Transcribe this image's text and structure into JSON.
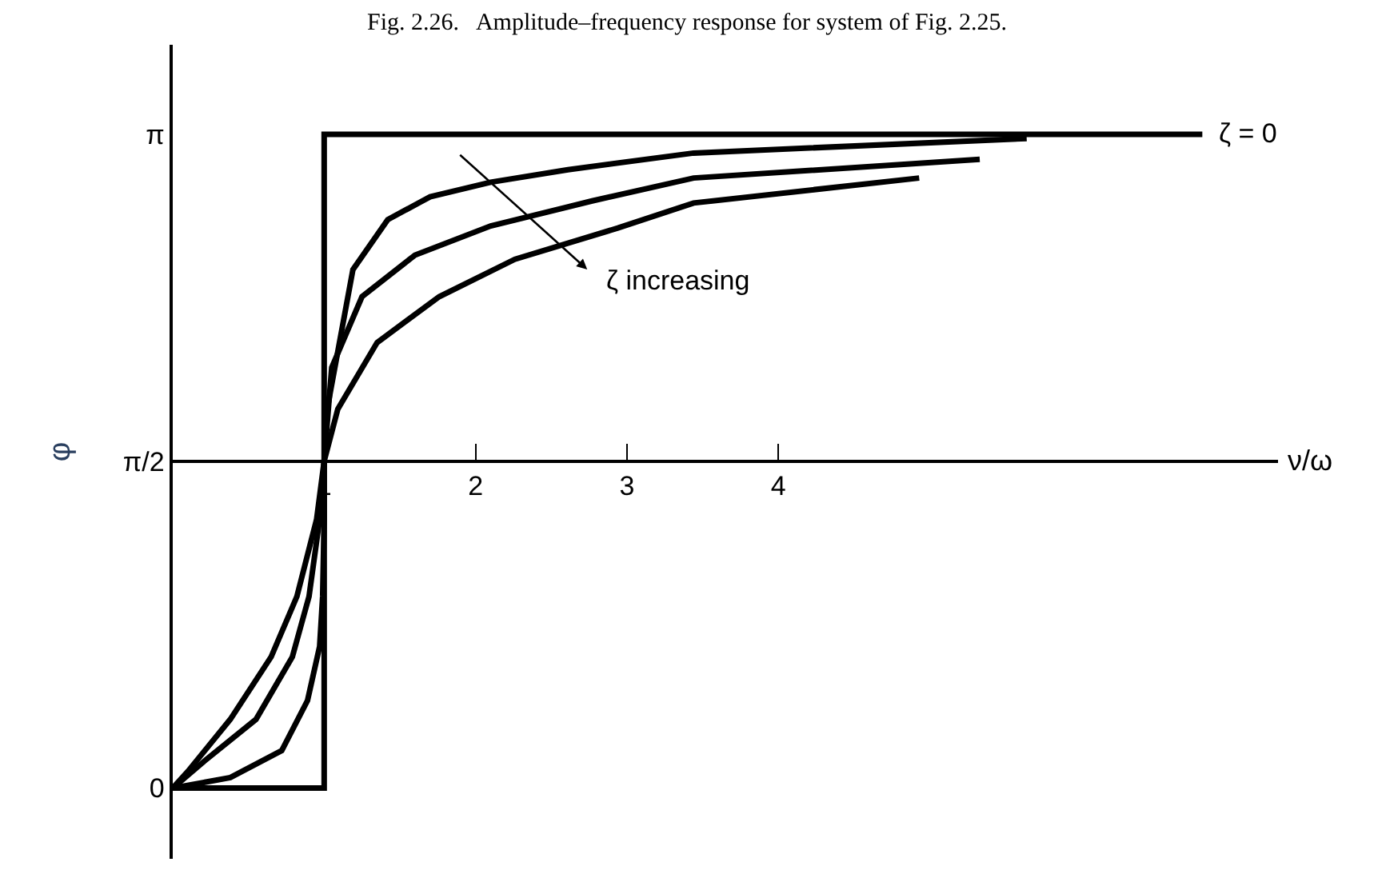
{
  "chart_data": {
    "type": "line",
    "title": "Fig. 2.26.   Amplitude–frequency response for system of Fig. 2.25.",
    "xlabel": "ν/ω",
    "ylabel": "φ",
    "xlim": [
      0,
      7.3
    ],
    "ylim": [
      -0.34,
      3.57
    ],
    "xticks": [
      1,
      2,
      3,
      4
    ],
    "yticks": [
      {
        "value": 0,
        "label": "0"
      },
      {
        "value": 1.57,
        "label": "π/2"
      },
      {
        "value": 3.14,
        "label": "π"
      }
    ],
    "legend": false,
    "marker": "none",
    "line_style": "solid",
    "annotations": [
      "ζ increasing"
    ],
    "series": [
      {
        "name": "ζ = 0",
        "color": "#000000",
        "x": [
          0,
          1,
          1,
          6.8
        ],
        "values": [
          0,
          0,
          3.14,
          3.14
        ]
      },
      {
        "color": "#000000",
        "x": [
          0,
          0.38,
          0.72,
          0.89,
          0.97,
          0.99,
          1.0,
          1.0,
          1.02,
          1.19,
          1.42,
          1.7,
          2.1,
          2.61,
          3.44,
          5.64
        ],
        "values": [
          0,
          0.05,
          0.18,
          0.42,
          0.68,
          0.92,
          1.29,
          1.57,
          1.82,
          2.49,
          2.73,
          2.84,
          2.91,
          2.97,
          3.05,
          3.12
        ]
      },
      {
        "color": "#000000",
        "x": [
          0,
          0.21,
          0.55,
          0.79,
          0.9,
          0.97,
          1.0,
          1.05,
          1.25,
          1.6,
          2.1,
          2.77,
          3.44,
          5.33
        ],
        "values": [
          0,
          0.13,
          0.33,
          0.63,
          0.92,
          1.29,
          1.57,
          2.02,
          2.36,
          2.56,
          2.7,
          2.82,
          2.93,
          3.02
        ]
      },
      {
        "color": "#000000",
        "x": [
          0,
          0.1,
          0.38,
          0.65,
          0.82,
          0.95,
          1.0,
          1.09,
          1.35,
          1.76,
          2.26,
          2.94,
          3.44,
          4.93
        ],
        "values": [
          0,
          0.08,
          0.33,
          0.63,
          0.92,
          1.29,
          1.57,
          1.82,
          2.14,
          2.36,
          2.54,
          2.69,
          2.81,
          2.93
        ]
      }
    ]
  }
}
